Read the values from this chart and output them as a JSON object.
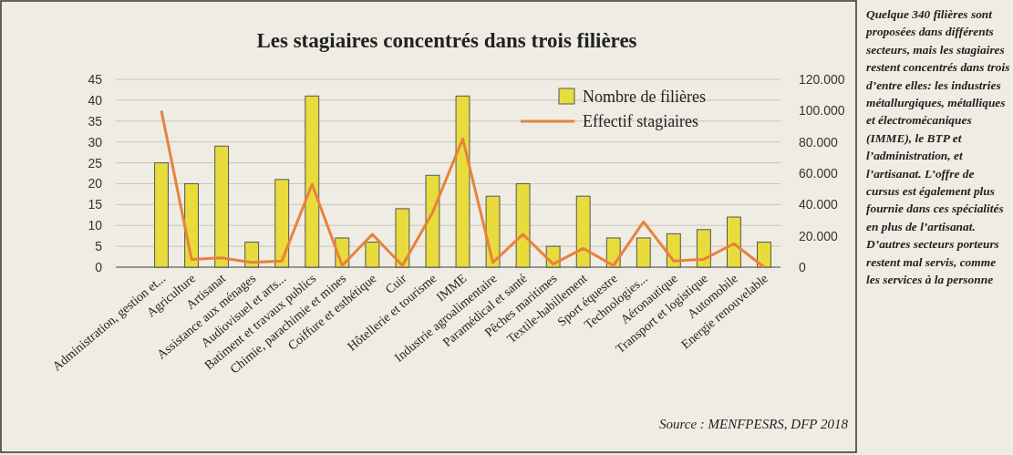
{
  "chart_data": {
    "type": "bar",
    "title": "Les stagiaires concentrés dans trois filières",
    "categories": [
      "Administration, gestion et...",
      "Agriculture",
      "Artisanat",
      "Assistance aux ménages",
      "Audiovisuel et arts...",
      "Batiment et travaux publics",
      "Chimie, parachimie et mines",
      "Coiffure et esthétique",
      "Cuir",
      "Hôtellerie et tourisme",
      "IMME",
      "Industrie agroalimentaire",
      "Paramédical et santé",
      "Pêches maritimes",
      "Textile-habillement",
      "Sport équestre",
      "Technologies...",
      "Aéronautique",
      "Transport et logistique",
      "Automobile",
      "Energie renouvelable"
    ],
    "series": [
      {
        "name": "Nombre de filières",
        "color": "#e8dc3c",
        "values": [
          25,
          20,
          29,
          6,
          21,
          41,
          7,
          6,
          14,
          22,
          41,
          17,
          20,
          5,
          17,
          7,
          7,
          8,
          9,
          12,
          6
        ]
      },
      {
        "name": "Effectif stagiaires",
        "type": "line",
        "axis": "y2",
        "color": "#e8823c",
        "values": [
          100000,
          5000,
          6000,
          3000,
          4000,
          53000,
          1000,
          21000,
          1000,
          35000,
          82000,
          3000,
          21000,
          2000,
          12000,
          1000,
          29000,
          4000,
          5000,
          15000,
          0
        ]
      }
    ],
    "ylim": [
      0,
      45
    ],
    "yticks": [
      0,
      5,
      10,
      15,
      20,
      25,
      30,
      35,
      40,
      45
    ],
    "y2lim": [
      0,
      120000
    ],
    "y2ticks": [
      {
        "value": 0,
        "label": "0"
      },
      {
        "value": 20000,
        "label": "20.000"
      },
      {
        "value": 40000,
        "label": "40.000"
      },
      {
        "value": 60000,
        "label": "60.000"
      },
      {
        "value": 80000,
        "label": "80.000"
      },
      {
        "value": 100000,
        "label": "100.000"
      },
      {
        "value": 120000,
        "label": "120.000"
      }
    ],
    "grid": "y",
    "legend": "top right",
    "marker": "none",
    "line_style": "solid",
    "annotations": [
      "Source : MENFPESRS, DFP 2018",
      "Quelque 340 filières sont proposées dans différents secteurs, mais les stagiaires restent concentrés dans trois d’entre elles: les industries métallurgiques, métalliques et électromécaniques (IMME), le BTP et l’administration, et l’artisanat. L’offre de cursus est également plus fournie dans ces spécialités en plus de l’artisanat. D’autres secteurs porteurs restent mal servis, comme les services à la personne"
    ]
  }
}
